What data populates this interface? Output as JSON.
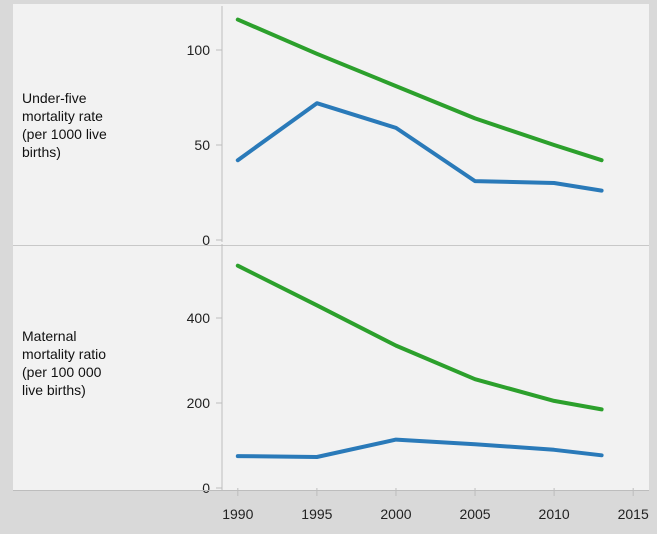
{
  "colors": {
    "blue": "#2a7ab9",
    "green": "#2ca02c"
  },
  "chart_data": [
    {
      "type": "line",
      "title": "",
      "ylabel": "Under-five mortality rate (per 1000 live births)",
      "ylabel_lines": [
        "Under-five",
        "mortality rate",
        "(per 1000 live",
        "births)"
      ],
      "xlabel": "",
      "x": [
        1990,
        1995,
        2000,
        2005,
        2010,
        2013
      ],
      "xlim": [
        1989,
        2016
      ],
      "ylim": [
        0,
        120
      ],
      "yticks": [
        0,
        50,
        100
      ],
      "series": [
        {
          "color": "green",
          "values": [
            116,
            98,
            81,
            64,
            50,
            42
          ]
        },
        {
          "color": "blue",
          "values": [
            42,
            72,
            59,
            31,
            30,
            26
          ]
        }
      ]
    },
    {
      "type": "line",
      "title": "",
      "ylabel": "Maternal mortality ratio (per 100 000 live births)",
      "ylabel_lines": [
        "Maternal",
        "mortality ratio",
        "(per 100 000",
        "live births)"
      ],
      "xlabel": "",
      "x": [
        1990,
        1995,
        2000,
        2005,
        2010,
        2013
      ],
      "xlim": [
        1989,
        2016
      ],
      "ylim": [
        0,
        560
      ],
      "yticks": [
        0,
        200,
        400
      ],
      "xticks": [
        1990,
        1995,
        2000,
        2005,
        2010,
        2015
      ],
      "series": [
        {
          "color": "green",
          "values": [
            523,
            430,
            335,
            256,
            205,
            185
          ]
        },
        {
          "color": "blue",
          "values": [
            75,
            73,
            114,
            103,
            90,
            77
          ]
        }
      ]
    }
  ]
}
